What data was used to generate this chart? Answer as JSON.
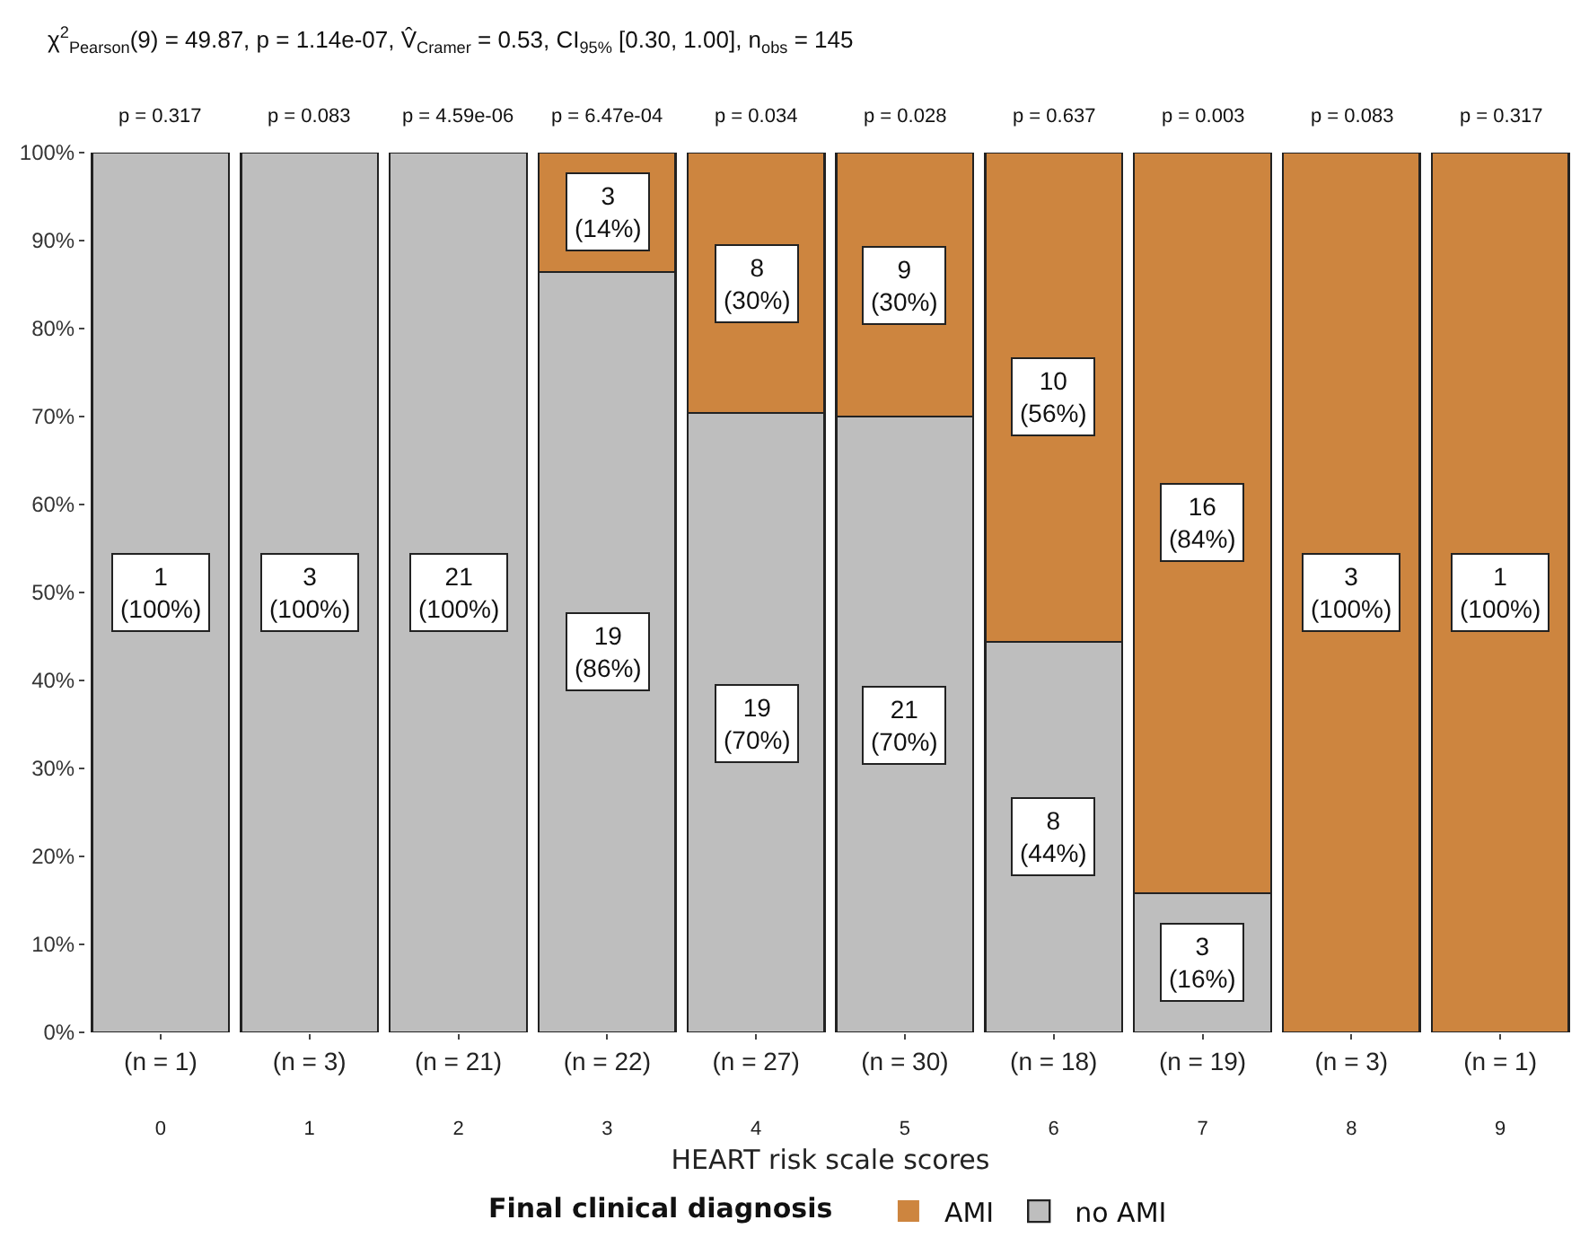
{
  "chart_data": {
    "type": "bar",
    "stacked": true,
    "subtitle": "χ$^{2}$$_{Pearson}$(9) = 49.87, p = 1.14e-07, V̂$_{Cramer}$ = 0.53, CI$_{95%}$ [0.30, 1.00], n$_{obs}$ = 145",
    "xlabel": "HEART risk scale scores",
    "legend_title": "Final clinical diagnosis",
    "categories": [
      "(n = 1)\n0",
      "(n = 3)\n1",
      "(n = 21)\n2",
      "(n = 22)\n3",
      "(n = 27)\n4",
      "(n = 30)\n5",
      "(n = 18)\n6",
      "(n = 19)\n7",
      "(n = 3)\n8",
      "(n = 1)\n9"
    ],
    "series": [
      {
        "name": "no AMI",
        "color": "#bebebe",
        "values": [
          100,
          100,
          100,
          86.4,
          70.4,
          70,
          44.4,
          15.8,
          0,
          0
        ],
        "value_labels": [
          "1\n(100%)",
          "3\n(100%)",
          "21\n(100%)",
          "19\n(86%)",
          "19\n(70%)",
          "21\n(70%)",
          "8\n(44%)",
          "3\n(16%)",
          null,
          null
        ]
      },
      {
        "name": "AMI",
        "color": "#cd853f",
        "values": [
          0,
          0,
          0,
          13.6,
          29.6,
          30,
          55.6,
          84.2,
          100,
          100
        ],
        "value_labels": [
          null,
          null,
          null,
          "3\n(14%)",
          "8\n(30%)",
          "9\n(30%)",
          "10\n(56%)",
          "16\n(84%)",
          "3\n(100%)",
          "1\n(100%)"
        ]
      }
    ],
    "ylim": [
      0,
      100
    ],
    "yticks": [
      {
        "value": 0,
        "label": "0%"
      },
      {
        "value": 10,
        "label": "10%"
      },
      {
        "value": 20,
        "label": "20%"
      },
      {
        "value": 30,
        "label": "30%"
      },
      {
        "value": 40,
        "label": "40%"
      },
      {
        "value": 50,
        "label": "50%"
      },
      {
        "value": 60,
        "label": "60%"
      },
      {
        "value": 70,
        "label": "70%"
      },
      {
        "value": 80,
        "label": "80%"
      },
      {
        "value": 90,
        "label": "90%"
      },
      {
        "value": 100,
        "label": "100%"
      }
    ],
    "annotations": [
      {
        "text": "p = 0.317",
        "x": "(n = 1)\n0",
        "y": 100
      },
      {
        "text": "p = 0.083",
        "x": "(n = 3)\n1",
        "y": 100
      },
      {
        "text": "p = 4.59e-06",
        "x": "(n = 21)\n2",
        "y": 100
      },
      {
        "text": "p = 6.47e-04",
        "x": "(n = 22)\n3",
        "y": 100
      },
      {
        "text": "p = 0.034",
        "x": "(n = 27)\n4",
        "y": 100
      },
      {
        "text": "p = 0.028",
        "x": "(n = 30)\n5",
        "y": 100
      },
      {
        "text": "p = 0.637",
        "x": "(n = 18)\n6",
        "y": 100
      },
      {
        "text": "p = 0.003",
        "x": "(n = 19)\n7",
        "y": 100
      },
      {
        "text": "p = 0.083",
        "x": "(n = 3)\n8",
        "y": 100
      },
      {
        "text": "p = 0.317",
        "x": "(n = 1)\n9",
        "y": 100
      }
    ],
    "grid": false,
    "legend": "bottom"
  }
}
